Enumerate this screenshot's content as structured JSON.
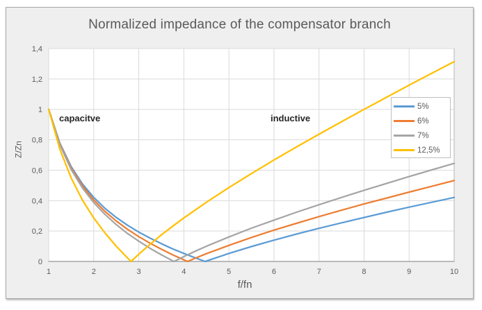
{
  "chart_data": {
    "type": "line",
    "title": "Normalized impedance of the compensator branch",
    "xlabel": "f/fn",
    "ylabel": "Z/Zn",
    "xlim": [
      1,
      10
    ],
    "ylim": [
      0,
      1.4
    ],
    "grid": true,
    "legend_position": "inside-right",
    "x_ticks": {
      "values": [
        1,
        2,
        3,
        4,
        5,
        6,
        7,
        8,
        9,
        10
      ],
      "labels": [
        "1",
        "2",
        "3",
        "4",
        "5",
        "6",
        "7",
        "8",
        "9",
        "10"
      ]
    },
    "y_ticks": {
      "values": [
        0,
        0.2,
        0.4,
        0.6,
        0.8,
        1,
        1.2,
        1.4
      ],
      "labels": [
        "0",
        "0,2",
        "0,4",
        "0,6",
        "0,8",
        "1",
        "1,2",
        "1,4"
      ]
    },
    "annotations": [
      {
        "text": "capacitve",
        "x": 1.25,
        "y": 0.93
      },
      {
        "text": "inductive",
        "x": 5.95,
        "y": 0.93
      }
    ],
    "series": [
      {
        "name": "5%",
        "color": "#5B9BD5",
        "zero_crossing": 4.472,
        "points": [
          [
            1,
            1
          ],
          [
            1.25,
            0.776
          ],
          [
            1.5,
            0.623
          ],
          [
            1.75,
            0.509
          ],
          [
            2,
            0.421
          ],
          [
            2.25,
            0.349
          ],
          [
            2.5,
            0.289
          ],
          [
            2.75,
            0.238
          ],
          [
            3,
            0.193
          ],
          [
            3.25,
            0.153
          ],
          [
            3.5,
            0.117
          ],
          [
            3.75,
            0.083
          ],
          [
            4,
            0.053
          ],
          [
            4.25,
            0.024
          ],
          [
            4.472,
            0
          ],
          [
            4.75,
            0.028
          ],
          [
            5,
            0.053
          ],
          [
            5.5,
            0.098
          ],
          [
            6,
            0.14
          ],
          [
            6.5,
            0.18
          ],
          [
            7,
            0.218
          ],
          [
            7.5,
            0.254
          ],
          [
            8,
            0.289
          ],
          [
            8.5,
            0.324
          ],
          [
            9,
            0.357
          ],
          [
            9.5,
            0.389
          ],
          [
            10,
            0.421
          ]
        ]
      },
      {
        "name": "6%",
        "color": "#ED7D31",
        "zero_crossing": 4.082,
        "points": [
          [
            1,
            1
          ],
          [
            1.25,
            0.771
          ],
          [
            1.5,
            0.614
          ],
          [
            1.75,
            0.496
          ],
          [
            2,
            0.404
          ],
          [
            2.25,
            0.329
          ],
          [
            2.5,
            0.266
          ],
          [
            2.75,
            0.211
          ],
          [
            3,
            0.163
          ],
          [
            3.25,
            0.12
          ],
          [
            3.5,
            0.081
          ],
          [
            3.75,
            0.044
          ],
          [
            4,
            0.011
          ],
          [
            4.082,
            0
          ],
          [
            4.25,
            0.021
          ],
          [
            4.5,
            0.051
          ],
          [
            5,
            0.106
          ],
          [
            5.5,
            0.158
          ],
          [
            6,
            0.206
          ],
          [
            6.5,
            0.251
          ],
          [
            7,
            0.295
          ],
          [
            7.5,
            0.337
          ],
          [
            8,
            0.378
          ],
          [
            8.5,
            0.417
          ],
          [
            9,
            0.456
          ],
          [
            9.5,
            0.494
          ],
          [
            10,
            0.532
          ]
        ]
      },
      {
        "name": "7%",
        "color": "#A5A5A5",
        "zero_crossing": 3.78,
        "points": [
          [
            1,
            1
          ],
          [
            1.25,
            0.766
          ],
          [
            1.5,
            0.604
          ],
          [
            1.75,
            0.483
          ],
          [
            2,
            0.387
          ],
          [
            2.25,
            0.309
          ],
          [
            2.5,
            0.242
          ],
          [
            2.75,
            0.184
          ],
          [
            3,
            0.133
          ],
          [
            3.25,
            0.086
          ],
          [
            3.5,
            0.044
          ],
          [
            3.78,
            0
          ],
          [
            4,
            0.032
          ],
          [
            4.25,
            0.067
          ],
          [
            4.5,
            0.1
          ],
          [
            5,
            0.161
          ],
          [
            5.5,
            0.219
          ],
          [
            6,
            0.272
          ],
          [
            6.5,
            0.324
          ],
          [
            7,
            0.373
          ],
          [
            7.5,
            0.421
          ],
          [
            8,
            0.468
          ],
          [
            8.5,
            0.513
          ],
          [
            9,
            0.558
          ],
          [
            9.5,
            0.602
          ],
          [
            10,
            0.645
          ]
        ]
      },
      {
        "name": "12,5%",
        "color": "#FFC000",
        "zero_crossing": 2.828,
        "points": [
          [
            1,
            1
          ],
          [
            1.25,
            0.736
          ],
          [
            1.5,
            0.548
          ],
          [
            1.75,
            0.403
          ],
          [
            2,
            0.286
          ],
          [
            2.25,
            0.187
          ],
          [
            2.5,
            0.1
          ],
          [
            2.75,
            0.023
          ],
          [
            2.828,
            0
          ],
          [
            3,
            0.048
          ],
          [
            3.25,
            0.113
          ],
          [
            3.5,
            0.174
          ],
          [
            3.75,
            0.231
          ],
          [
            4,
            0.286
          ],
          [
            4.5,
            0.389
          ],
          [
            5,
            0.486
          ],
          [
            5.5,
            0.578
          ],
          [
            6,
            0.667
          ],
          [
            6.5,
            0.753
          ],
          [
            7,
            0.837
          ],
          [
            7.5,
            0.919
          ],
          [
            8,
            1
          ],
          [
            8.5,
            1.08
          ],
          [
            9,
            1.159
          ],
          [
            9.5,
            1.237
          ],
          [
            10,
            1.314
          ]
        ]
      }
    ]
  },
  "colors": {
    "chart_background": "#EFEFEF",
    "plot_background": "#FFFFFF",
    "gridline": "#D9D9D9",
    "axis_line": "#A6A6A6",
    "plot_border": "#C0C0C0",
    "frame_border": "#A6A6A6",
    "tick_text": "#595959",
    "title_text": "#595959",
    "annotation_text": "#262626",
    "legend_border": "#BFBFBF"
  }
}
